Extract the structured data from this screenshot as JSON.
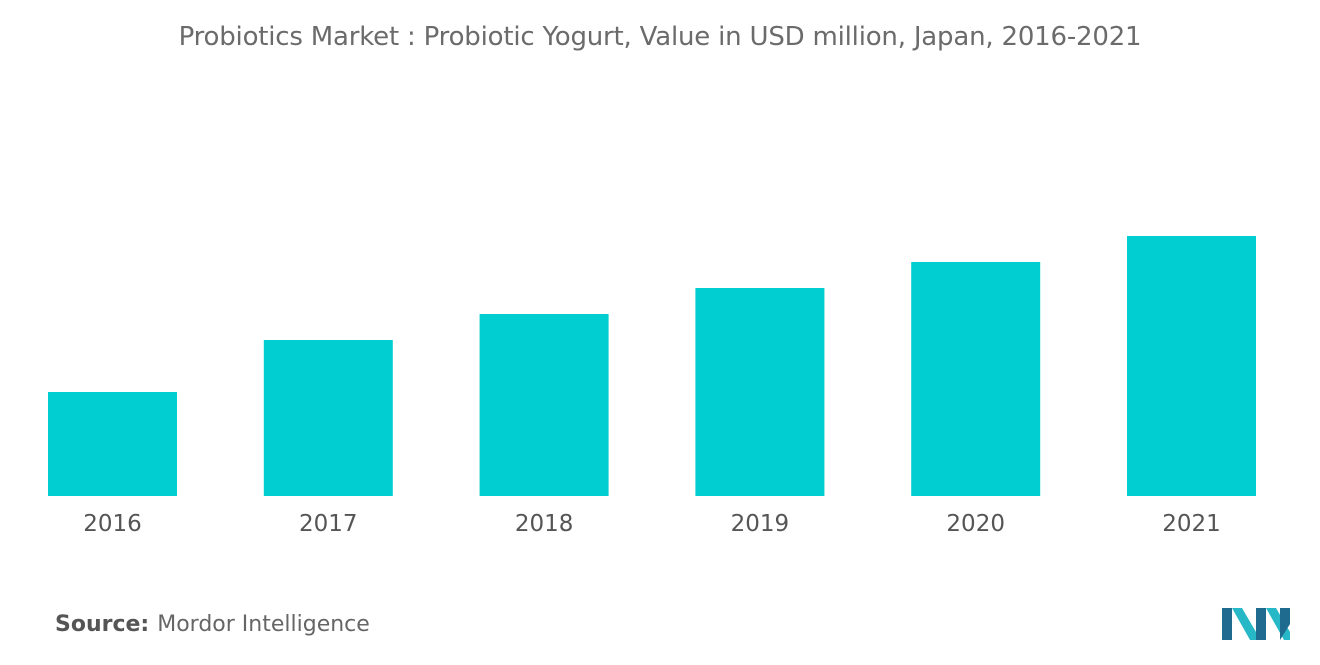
{
  "header": {
    "title": "Probiotics Market : Probiotic Yogurt, Value in USD million,  Japan, 2016-2021"
  },
  "footer": {
    "source_label": "Source:",
    "source_value": "Mordor Intelligence",
    "logo_icon": "mordor-intelligence-logo-icon"
  },
  "colors": {
    "bar": "#00ced1",
    "tick_text": "#555555",
    "title_text": "#6b6b6b",
    "logo_dark": "#1e6b8f",
    "logo_light": "#27b8c7"
  },
  "chart_data": {
    "type": "bar",
    "title": "Probiotics Market : Probiotic Yogurt, Value in USD million,  Japan, 2016-2021",
    "categories": [
      "2016",
      "2017",
      "2018",
      "2019",
      "2020",
      "2021"
    ],
    "values": [
      40,
      60,
      70,
      80,
      90,
      100
    ],
    "xlabel": "",
    "ylabel": "",
    "ylim": [
      0,
      100
    ],
    "grid": false,
    "legend": "none",
    "y_axis_visible": false
  }
}
